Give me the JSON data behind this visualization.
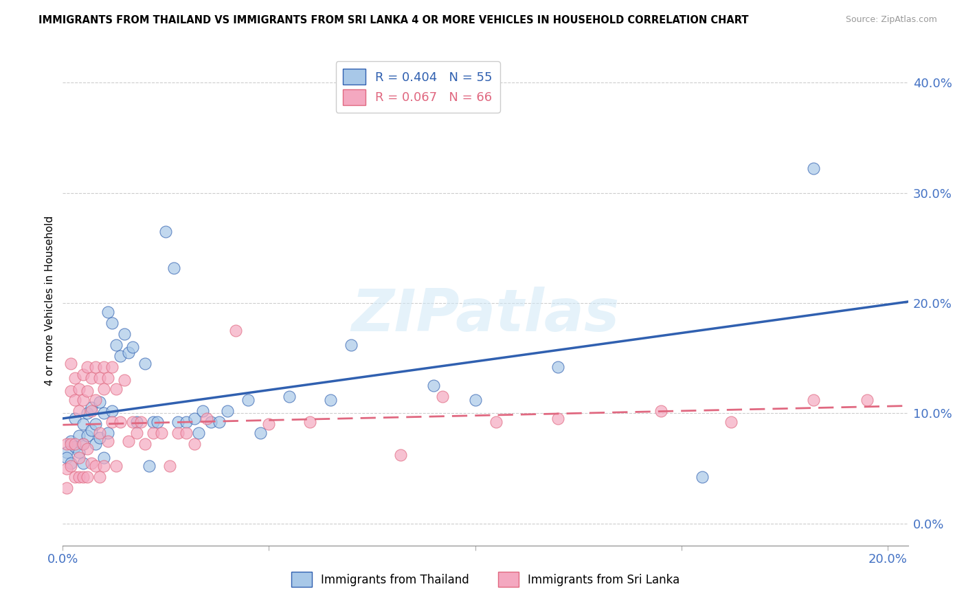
{
  "title": "IMMIGRANTS FROM THAILAND VS IMMIGRANTS FROM SRI LANKA 4 OR MORE VEHICLES IN HOUSEHOLD CORRELATION CHART",
  "source": "Source: ZipAtlas.com",
  "ylabel": "4 or more Vehicles in Household",
  "legend_label1": "Immigrants from Thailand",
  "legend_label2": "Immigrants from Sri Lanka",
  "R1": 0.404,
  "N1": 55,
  "R2": 0.067,
  "N2": 66,
  "color1": "#a8c8e8",
  "color2": "#f4a8c0",
  "line_color1": "#3060b0",
  "line_color2": "#e06880",
  "axis_tick_color": "#4472c4",
  "xlim": [
    0.0,
    0.205
  ],
  "ylim": [
    -0.02,
    0.425
  ],
  "yticks": [
    0.0,
    0.1,
    0.2,
    0.3,
    0.4
  ],
  "xticks": [
    0.0,
    0.05,
    0.1,
    0.15,
    0.2
  ],
  "watermark_text": "ZIPatlas",
  "thailand_x": [
    0.001,
    0.001,
    0.002,
    0.002,
    0.003,
    0.003,
    0.004,
    0.004,
    0.005,
    0.005,
    0.005,
    0.006,
    0.006,
    0.007,
    0.007,
    0.008,
    0.008,
    0.009,
    0.009,
    0.01,
    0.01,
    0.011,
    0.011,
    0.012,
    0.012,
    0.013,
    0.014,
    0.015,
    0.016,
    0.017,
    0.018,
    0.02,
    0.021,
    0.022,
    0.023,
    0.025,
    0.027,
    0.028,
    0.03,
    0.032,
    0.033,
    0.034,
    0.036,
    0.038,
    0.04,
    0.045,
    0.048,
    0.055,
    0.065,
    0.07,
    0.09,
    0.1,
    0.12,
    0.155,
    0.182
  ],
  "thailand_y": [
    0.065,
    0.06,
    0.075,
    0.055,
    0.095,
    0.07,
    0.08,
    0.065,
    0.09,
    0.072,
    0.055,
    0.1,
    0.08,
    0.105,
    0.085,
    0.09,
    0.072,
    0.11,
    0.078,
    0.1,
    0.06,
    0.192,
    0.082,
    0.182,
    0.102,
    0.162,
    0.152,
    0.172,
    0.155,
    0.16,
    0.092,
    0.145,
    0.052,
    0.092,
    0.092,
    0.265,
    0.232,
    0.092,
    0.092,
    0.095,
    0.082,
    0.102,
    0.092,
    0.092,
    0.102,
    0.112,
    0.082,
    0.115,
    0.112,
    0.162,
    0.125,
    0.112,
    0.142,
    0.042,
    0.322
  ],
  "srilanka_x": [
    0.001,
    0.001,
    0.001,
    0.002,
    0.002,
    0.002,
    0.002,
    0.003,
    0.003,
    0.003,
    0.003,
    0.004,
    0.004,
    0.004,
    0.004,
    0.005,
    0.005,
    0.005,
    0.005,
    0.006,
    0.006,
    0.006,
    0.006,
    0.007,
    0.007,
    0.007,
    0.008,
    0.008,
    0.008,
    0.009,
    0.009,
    0.009,
    0.01,
    0.01,
    0.01,
    0.011,
    0.011,
    0.012,
    0.012,
    0.013,
    0.013,
    0.014,
    0.015,
    0.016,
    0.017,
    0.018,
    0.019,
    0.02,
    0.022,
    0.024,
    0.026,
    0.028,
    0.03,
    0.032,
    0.035,
    0.042,
    0.05,
    0.06,
    0.082,
    0.092,
    0.105,
    0.12,
    0.145,
    0.162,
    0.182,
    0.195
  ],
  "srilanka_y": [
    0.072,
    0.05,
    0.032,
    0.145,
    0.12,
    0.052,
    0.072,
    0.132,
    0.112,
    0.072,
    0.042,
    0.122,
    0.102,
    0.042,
    0.06,
    0.135,
    0.112,
    0.072,
    0.042,
    0.142,
    0.12,
    0.068,
    0.042,
    0.132,
    0.102,
    0.055,
    0.142,
    0.112,
    0.052,
    0.132,
    0.082,
    0.042,
    0.142,
    0.122,
    0.052,
    0.132,
    0.075,
    0.142,
    0.092,
    0.122,
    0.052,
    0.092,
    0.13,
    0.075,
    0.092,
    0.082,
    0.092,
    0.072,
    0.082,
    0.082,
    0.052,
    0.082,
    0.082,
    0.072,
    0.095,
    0.175,
    0.09,
    0.092,
    0.062,
    0.115,
    0.092,
    0.095,
    0.102,
    0.092,
    0.112,
    0.112
  ]
}
